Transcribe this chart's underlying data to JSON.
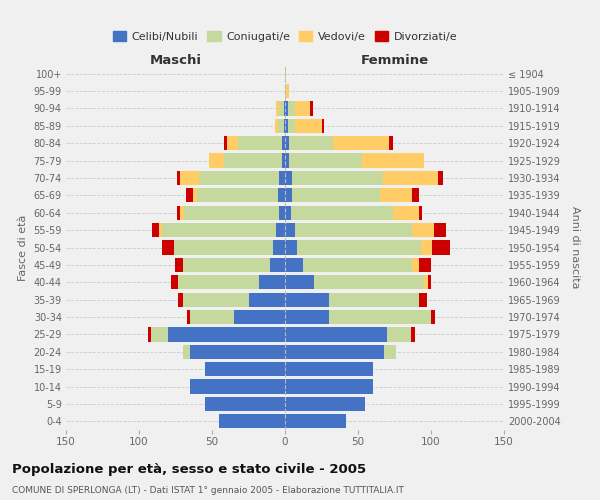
{
  "age_groups": [
    "0-4",
    "5-9",
    "10-14",
    "15-19",
    "20-24",
    "25-29",
    "30-34",
    "35-39",
    "40-44",
    "45-49",
    "50-54",
    "55-59",
    "60-64",
    "65-69",
    "70-74",
    "75-79",
    "80-84",
    "85-89",
    "90-94",
    "95-99",
    "100+"
  ],
  "birth_years": [
    "2000-2004",
    "1995-1999",
    "1990-1994",
    "1985-1989",
    "1980-1984",
    "1975-1979",
    "1970-1974",
    "1965-1969",
    "1960-1964",
    "1955-1959",
    "1950-1954",
    "1945-1949",
    "1940-1944",
    "1935-1939",
    "1930-1934",
    "1925-1929",
    "1920-1924",
    "1915-1919",
    "1910-1914",
    "1905-1909",
    "≤ 1904"
  ],
  "colors": {
    "celibi": "#4472C4",
    "coniugati": "#C5D89D",
    "vedovi": "#FFCC66",
    "divorziati": "#CC0000"
  },
  "male": {
    "celibi": [
      45,
      55,
      65,
      55,
      65,
      80,
      35,
      25,
      18,
      10,
      8,
      6,
      4,
      5,
      4,
      2,
      2,
      1,
      1,
      0,
      0
    ],
    "coniugati": [
      0,
      0,
      0,
      0,
      5,
      12,
      30,
      45,
      55,
      60,
      68,
      78,
      65,
      55,
      55,
      40,
      30,
      4,
      3,
      0,
      0
    ],
    "vedovi": [
      0,
      0,
      0,
      0,
      0,
      0,
      0,
      0,
      0,
      0,
      0,
      2,
      3,
      3,
      13,
      10,
      8,
      2,
      2,
      0,
      0
    ],
    "divorziati": [
      0,
      0,
      0,
      0,
      0,
      2,
      2,
      3,
      5,
      5,
      8,
      5,
      2,
      5,
      2,
      0,
      2,
      0,
      0,
      0,
      0
    ]
  },
  "female": {
    "celibi": [
      42,
      55,
      60,
      60,
      68,
      70,
      30,
      30,
      20,
      12,
      8,
      7,
      4,
      5,
      5,
      3,
      3,
      2,
      2,
      0,
      0
    ],
    "coniugati": [
      0,
      0,
      0,
      0,
      8,
      16,
      70,
      62,
      75,
      75,
      85,
      80,
      70,
      60,
      62,
      50,
      30,
      5,
      5,
      1,
      0
    ],
    "vedovi": [
      0,
      0,
      0,
      0,
      0,
      0,
      0,
      0,
      3,
      5,
      8,
      15,
      18,
      22,
      38,
      42,
      38,
      18,
      10,
      2,
      1
    ],
    "divorziati": [
      0,
      0,
      0,
      0,
      0,
      3,
      3,
      5,
      2,
      8,
      12,
      8,
      2,
      5,
      3,
      0,
      3,
      2,
      2,
      0,
      0
    ]
  },
  "title": "Popolazione per età, sesso e stato civile - 2005",
  "subtitle": "COMUNE DI SPERLONGA (LT) - Dati ISTAT 1° gennaio 2005 - Elaborazione TUTTITALIA.IT",
  "xlabel_left": "Maschi",
  "xlabel_right": "Femmine",
  "ylabel_left": "Fasce di età",
  "ylabel_right": "Anni di nascita",
  "xlim": 150,
  "legend_labels": [
    "Celibi/Nubili",
    "Coniugati/e",
    "Vedovi/e",
    "Divorziati/e"
  ],
  "background_color": "#f0f0f0"
}
